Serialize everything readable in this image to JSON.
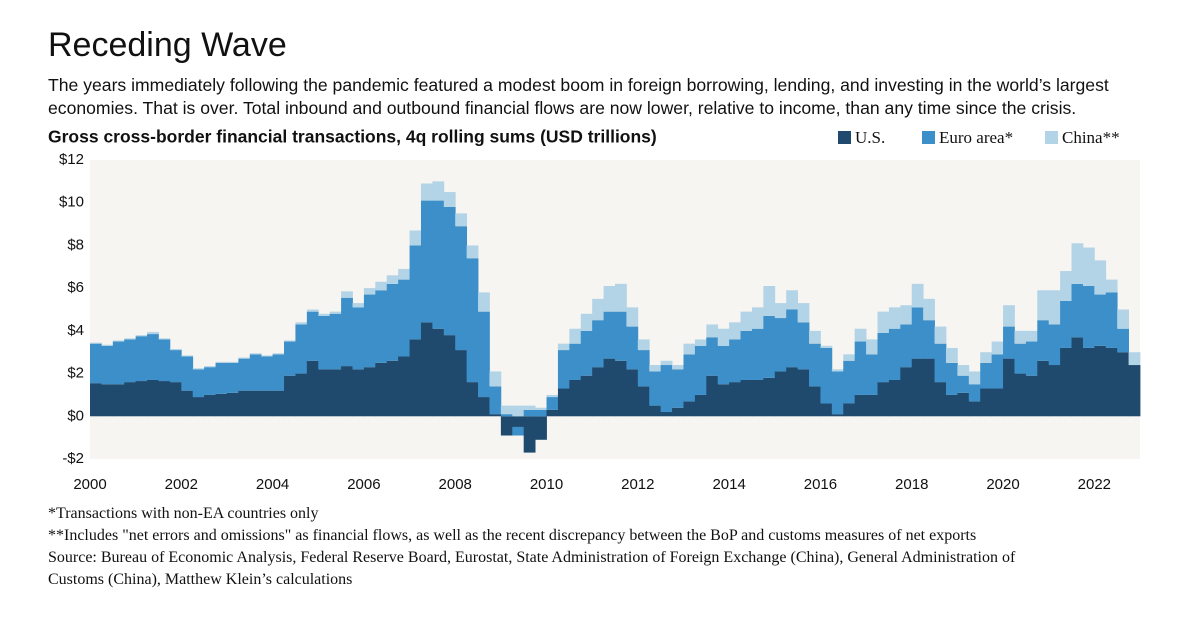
{
  "chart_data": {
    "type": "stacked-step-area",
    "title": "Receding Wave",
    "subtitle": "The years immediately following the pandemic featured a modest boom in foreign borrowing, lending, and investing in the world’s largest economies. That is over. Total inbound and outbound financial flows are now lower, relative to income, than any time since the crisis.",
    "chart_title": "Gross cross-border financial transactions, 4q rolling sums (USD trillions)",
    "notes": [
      "*Transactions with non-EA countries only",
      "**Includes \"net errors and omissions\" as financial flows, as well as the recent discrepancy between the BoP and customs measures of net exports",
      "Source: Bureau of Economic Analysis, Federal Reserve Board, Eurostat, State Administration of Foreign Exchange (China), General Administration of Customs (China),  Matthew Klein’s calculations"
    ],
    "x": [
      2000,
      2000.25,
      2000.5,
      2000.75,
      2001,
      2001.25,
      2001.5,
      2001.75,
      2002,
      2002.25,
      2002.5,
      2002.75,
      2003,
      2003.25,
      2003.5,
      2003.75,
      2004,
      2004.25,
      2004.5,
      2004.75,
      2005,
      2005.25,
      2005.5,
      2005.75,
      2006,
      2006.25,
      2006.5,
      2006.75,
      2007,
      2007.25,
      2007.5,
      2007.75,
      2008,
      2008.25,
      2008.5,
      2008.75,
      2009,
      2009.25,
      2009.5,
      2009.75,
      2010,
      2010.25,
      2010.5,
      2010.75,
      2011,
      2011.25,
      2011.5,
      2011.75,
      2012,
      2012.25,
      2012.5,
      2012.75,
      2013,
      2013.25,
      2013.5,
      2013.75,
      2014,
      2014.25,
      2014.5,
      2014.75,
      2015,
      2015.25,
      2015.5,
      2015.75,
      2016,
      2016.25,
      2016.5,
      2016.75,
      2017,
      2017.25,
      2017.5,
      2017.75,
      2018,
      2018.25,
      2018.5,
      2018.75,
      2019,
      2019.25,
      2019.5,
      2019.75,
      2020,
      2020.25,
      2020.5,
      2020.75,
      2021,
      2021.25,
      2021.5,
      2021.75,
      2022,
      2022.25,
      2022.5,
      2022.75
    ],
    "series": [
      {
        "name": "U.S.",
        "color": "#1f4a6e",
        "values": [
          1.55,
          1.5,
          1.5,
          1.6,
          1.65,
          1.7,
          1.65,
          1.6,
          1.2,
          0.9,
          1.0,
          1.05,
          1.1,
          1.2,
          1.2,
          1.2,
          1.2,
          1.9,
          2.0,
          2.6,
          2.2,
          2.2,
          2.35,
          2.2,
          2.3,
          2.5,
          2.6,
          2.8,
          3.6,
          4.4,
          4.1,
          3.8,
          3.1,
          1.6,
          0.9,
          0.1,
          -0.9,
          -0.5,
          -1.7,
          -1.1,
          0.3,
          1.3,
          1.7,
          1.9,
          2.3,
          2.7,
          2.6,
          2.2,
          1.4,
          0.5,
          0.2,
          0.4,
          0.7,
          1.0,
          1.9,
          1.5,
          1.6,
          1.7,
          1.7,
          1.8,
          2.1,
          2.3,
          2.2,
          1.4,
          0.6,
          0.1,
          0.6,
          1.0,
          1.0,
          1.6,
          1.7,
          2.3,
          2.7,
          2.7,
          1.6,
          1.0,
          1.1,
          0.7,
          1.3,
          1.3,
          2.7,
          2.0,
          1.9,
          2.6,
          2.4,
          3.2,
          3.7,
          3.2,
          3.3,
          3.2,
          3.0,
          2.4
        ]
      },
      {
        "name": "Euro area*",
        "color": "#3d8fc9",
        "values": [
          1.85,
          1.8,
          2.0,
          2.0,
          2.1,
          2.15,
          1.95,
          1.5,
          1.6,
          1.3,
          1.3,
          1.45,
          1.4,
          1.5,
          1.7,
          1.6,
          1.7,
          1.6,
          2.3,
          2.3,
          2.5,
          2.6,
          3.2,
          2.9,
          3.4,
          3.4,
          3.6,
          3.6,
          4.4,
          5.7,
          6.0,
          6.0,
          5.8,
          5.8,
          4.0,
          1.3,
          0.1,
          -0.4,
          0.3,
          0.3,
          0.6,
          1.8,
          1.7,
          2.1,
          2.2,
          2.2,
          2.3,
          2.0,
          1.7,
          1.6,
          2.2,
          1.8,
          2.2,
          2.3,
          1.8,
          1.8,
          2.0,
          2.3,
          2.4,
          2.9,
          2.5,
          2.7,
          2.2,
          2.0,
          2.6,
          2.0,
          2.0,
          2.5,
          1.9,
          2.3,
          2.4,
          2.0,
          2.4,
          1.8,
          1.8,
          1.5,
          0.8,
          0.8,
          1.2,
          1.6,
          1.5,
          1.4,
          1.6,
          1.9,
          1.9,
          2.2,
          2.5,
          2.9,
          2.4,
          2.6,
          1.1,
          0.0
        ]
      },
      {
        "name": "China**",
        "color": "#b3d4e6",
        "values": [
          0.05,
          0.05,
          0.05,
          0.05,
          0.05,
          0.1,
          0.05,
          0.05,
          0.05,
          0.05,
          0.05,
          0.05,
          0.05,
          0.05,
          0.05,
          0.05,
          0.05,
          0.05,
          0.1,
          0.1,
          0.1,
          0.1,
          0.3,
          0.2,
          0.3,
          0.4,
          0.4,
          0.5,
          0.7,
          0.8,
          0.9,
          0.7,
          0.6,
          0.6,
          0.9,
          0.7,
          0.4,
          0.5,
          0.2,
          0.1,
          0.1,
          0.3,
          0.7,
          0.8,
          1.0,
          1.2,
          1.3,
          0.9,
          0.5,
          0.3,
          0.2,
          0.2,
          0.5,
          0.3,
          0.6,
          0.8,
          0.8,
          0.9,
          1.0,
          1.4,
          0.7,
          0.9,
          0.9,
          0.6,
          0.1,
          0.1,
          0.3,
          0.6,
          0.7,
          1.0,
          1.0,
          0.9,
          1.1,
          1.0,
          0.8,
          0.7,
          0.5,
          0.6,
          0.5,
          0.6,
          1.0,
          0.6,
          0.5,
          1.4,
          1.6,
          1.4,
          1.9,
          1.8,
          1.6,
          0.6,
          0.9,
          0.6
        ]
      }
    ],
    "xlim": [
      2000,
      2023
    ],
    "xticks": [
      2000,
      2002,
      2004,
      2006,
      2008,
      2010,
      2012,
      2014,
      2016,
      2018,
      2020,
      2022
    ],
    "ylim": [
      -2,
      12
    ],
    "yticks": [
      {
        "value": -2,
        "label": "-$2"
      },
      {
        "value": 0,
        "label": "$0"
      },
      {
        "value": 2,
        "label": "$2"
      },
      {
        "value": 4,
        "label": "$4"
      },
      {
        "value": 6,
        "label": "$6"
      },
      {
        "value": 8,
        "label": "$8"
      },
      {
        "value": 10,
        "label": "$10"
      },
      {
        "value": 12,
        "label": "$12"
      }
    ],
    "legend": "top-right"
  }
}
